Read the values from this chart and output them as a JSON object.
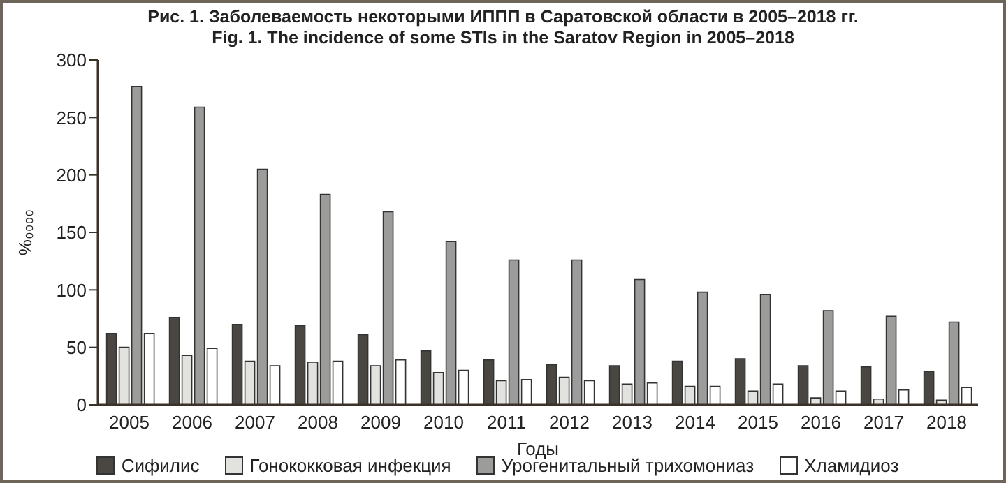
{
  "chart_data": {
    "type": "bar",
    "title": "Рис. 1. Заболеваемость некоторыми ИППП в Саратовской области в 2005–2018 гг.",
    "subtitle": "Fig. 1. The incidence of some STIs in the Saratov Region in 2005–2018",
    "xlabel": "Годы",
    "ylabel": "%₀₀₀₀",
    "categories": [
      "2005",
      "2006",
      "2007",
      "2008",
      "2009",
      "2010",
      "2011",
      "2012",
      "2013",
      "2014",
      "2015",
      "2016",
      "2017",
      "2018"
    ],
    "series": [
      {
        "name": "Сифилис",
        "color": "#4a4642",
        "values": [
          62,
          76,
          70,
          69,
          61,
          47,
          39,
          35,
          34,
          38,
          40,
          34,
          33,
          29
        ]
      },
      {
        "name": "Гонококковая инфекция",
        "color": "#e2e2de",
        "values": [
          50,
          43,
          38,
          37,
          34,
          28,
          21,
          24,
          18,
          16,
          12,
          6,
          5,
          4
        ]
      },
      {
        "name": "Урогенитальный трихомониаз",
        "color": "#9c9c9a",
        "values": [
          277,
          259,
          205,
          183,
          168,
          142,
          126,
          126,
          109,
          98,
          96,
          82,
          77,
          72
        ]
      },
      {
        "name": "Хламидиоз",
        "color": "#ffffff",
        "values": [
          62,
          49,
          34,
          38,
          39,
          30,
          22,
          21,
          19,
          16,
          18,
          12,
          13,
          15
        ]
      }
    ],
    "ylim": [
      0,
      300
    ],
    "yticks": [
      0,
      50,
      100,
      150,
      200,
      250,
      300
    ],
    "grid": false,
    "legend": "bottom"
  }
}
